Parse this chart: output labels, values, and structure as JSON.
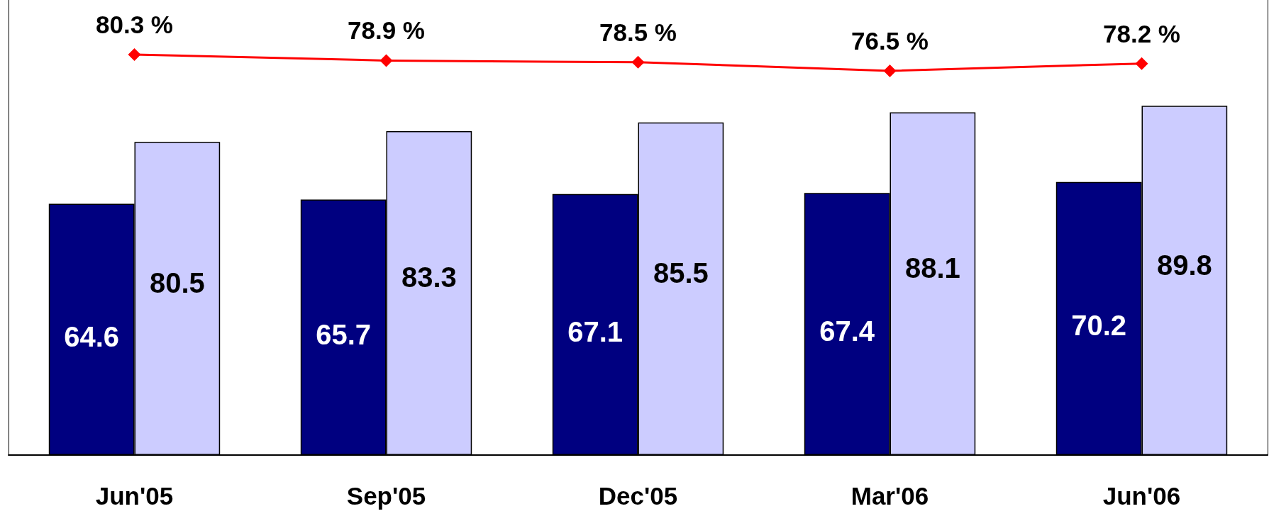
{
  "chart_data": {
    "type": "bar",
    "categories": [
      "Jun'05",
      "Sep'05",
      "Dec'05",
      "Mar'06",
      "Jun'06"
    ],
    "series": [
      {
        "color": "#000080",
        "values": [
          64.6,
          65.7,
          67.1,
          67.4,
          70.2
        ]
      },
      {
        "color": "#ccccff",
        "values": [
          80.5,
          83.3,
          85.5,
          88.1,
          89.8
        ]
      },
      {
        "type": "line",
        "axis": "y2",
        "color": "#ff0000",
        "marker": "diamond",
        "values": [
          80.3,
          78.9,
          78.5,
          76.5,
          78.2
        ],
        "value_labels": [
          "80.3 %",
          "78.9 %",
          "78.5 %",
          "76.5 %",
          "78.2 %"
        ]
      }
    ],
    "data_labels": true,
    "ylim": [
      0,
      117
    ],
    "y2lim": [
      -13,
      93
    ],
    "tick_labels": "x",
    "grid": false
  }
}
